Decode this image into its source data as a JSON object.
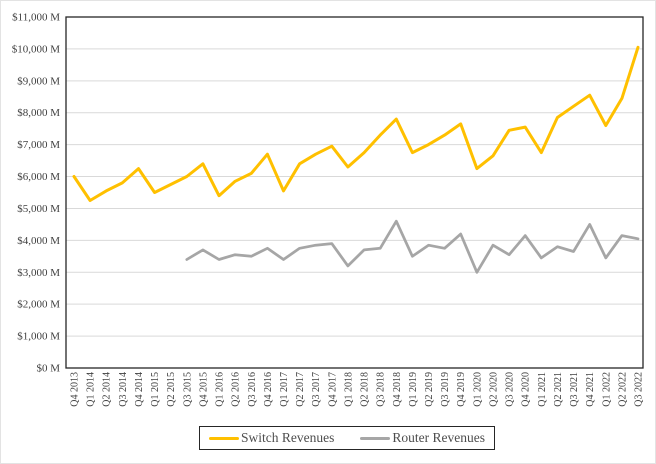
{
  "chart_data": {
    "type": "line",
    "title": "",
    "xlabel": "",
    "ylabel": "",
    "grid": "horizontal",
    "legend_position": "bottom",
    "ylim": [
      0,
      11000
    ],
    "ytick_step": 1000,
    "y_tick_labels": [
      "$0 M",
      "$1,000 M",
      "$2,000 M",
      "$3,000 M",
      "$4,000 M",
      "$5,000 M",
      "$6,000 M",
      "$7,000 M",
      "$8,000 M",
      "$9,000 M",
      "$10,000 M",
      "$11,000 M"
    ],
    "categories": [
      "Q4 2013",
      "Q1 2014",
      "Q2 2014",
      "Q3 2014",
      "Q4 2014",
      "Q1 2015",
      "Q2 2015",
      "Q3 2015",
      "Q4 2015",
      "Q1 2016",
      "Q2 2016",
      "Q3 2016",
      "Q4 2016",
      "Q1 2017",
      "Q2 2017",
      "Q3 2017",
      "Q4 2017",
      "Q1 2018",
      "Q2 2018",
      "Q3 2018",
      "Q4 2018",
      "Q1 2019",
      "Q2 2019",
      "Q3 2019",
      "Q4 2019",
      "Q1 2020",
      "Q2 2020",
      "Q3 2020",
      "Q4 2020",
      "Q1 2021",
      "Q2 2021",
      "Q3 2021",
      "Q4 2021",
      "Q1 2022",
      "Q2 2022",
      "Q3 2022"
    ],
    "series": [
      {
        "name": "Switch Revenues",
        "color": "#FFC000",
        "values": [
          6000,
          5250,
          5550,
          5800,
          6250,
          5500,
          5750,
          6000,
          6400,
          5400,
          5850,
          6100,
          6700,
          5550,
          6400,
          6700,
          6950,
          6300,
          6750,
          7300,
          7800,
          6750,
          7000,
          7300,
          7650,
          6250,
          6650,
          7450,
          7550,
          6750,
          7850,
          8200,
          8550,
          7600,
          8450,
          10050
        ]
      },
      {
        "name": "Router Revenues",
        "color": "#A6A6A6",
        "values": [
          null,
          null,
          null,
          null,
          null,
          null,
          null,
          3400,
          3700,
          3400,
          3550,
          3500,
          3750,
          3400,
          3750,
          3850,
          3900,
          3200,
          3700,
          3750,
          4600,
          3500,
          3850,
          3750,
          4200,
          3000,
          3850,
          3550,
          4150,
          3450,
          3800,
          3650,
          4500,
          3450,
          4150,
          4050
        ]
      }
    ],
    "colors": {
      "gridline": "#D9D9D9",
      "plot_border": "#262626",
      "tick_text": "#404040"
    }
  }
}
